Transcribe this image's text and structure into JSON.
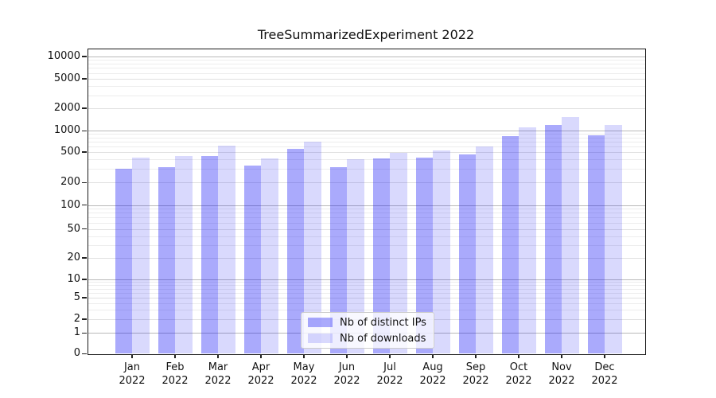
{
  "title": "TreeSummarizedExperiment 2022",
  "legend": {
    "items": [
      {
        "label": "Nb of distinct IPs",
        "color": "rgba(10,10,245,0.345)"
      },
      {
        "label": "Nb of downloads",
        "color": "rgba(10,10,245,0.155)"
      }
    ]
  },
  "chart_data": {
    "type": "bar",
    "title": "TreeSummarizedExperiment 2022",
    "categories": [
      "Jan 2022",
      "Feb 2022",
      "Mar 2022",
      "Apr 2022",
      "May 2022",
      "Jun 2022",
      "Jul 2022",
      "Aug 2022",
      "Sep 2022",
      "Oct 2022",
      "Nov 2022",
      "Dec 2022"
    ],
    "month_labels": [
      "Jan",
      "Feb",
      "Mar",
      "Apr",
      "May",
      "Jun",
      "Jul",
      "Aug",
      "Sep",
      "Oct",
      "Nov",
      "Dec"
    ],
    "year_label": "2022",
    "series": [
      {
        "name": "Nb of distinct IPs",
        "values": [
          305,
          315,
          445,
          330,
          560,
          315,
          410,
          420,
          470,
          840,
          1200,
          860
        ]
      },
      {
        "name": "Nb of downloads",
        "values": [
          420,
          445,
          620,
          415,
          700,
          400,
          490,
          525,
          600,
          1100,
          1530,
          1190
        ]
      }
    ],
    "yscale": "symlog",
    "y_ticks": [
      0,
      1,
      2,
      5,
      10,
      20,
      50,
      100,
      200,
      500,
      1000,
      2000,
      5000,
      10000
    ],
    "ylim": [
      0,
      12500
    ],
    "xlabel": "",
    "ylabel": "",
    "grid": true,
    "legend_position": "lower center",
    "bar_colors": [
      "rgba(10,10,245,0.345)",
      "rgba(10,10,245,0.155)"
    ]
  }
}
